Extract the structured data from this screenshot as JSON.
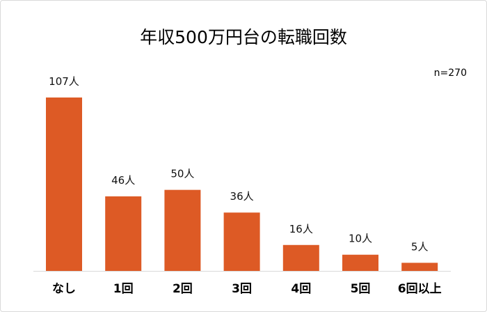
{
  "chart_data": {
    "type": "bar",
    "title": "年収500万円台の転職回数",
    "note": "n=270",
    "categories": [
      "なし",
      "1回",
      "2回",
      "3回",
      "4回",
      "5回",
      "6回以上"
    ],
    "values": [
      107,
      46,
      50,
      36,
      16,
      10,
      5
    ],
    "data_labels": [
      "107人",
      "46人",
      "50人",
      "36人",
      "16人",
      "10人",
      "5人"
    ],
    "unit": "人",
    "ylim": [
      0,
      107
    ],
    "grid": false,
    "legend": "none",
    "bar_color": "#dd5a25"
  }
}
